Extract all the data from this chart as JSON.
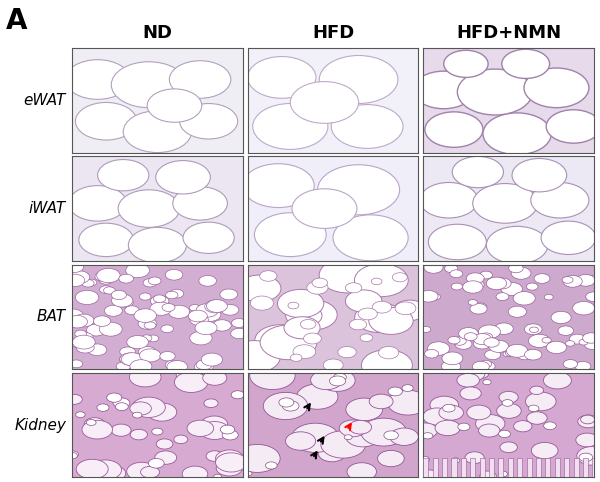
{
  "panel_label": "A",
  "col_headers": [
    "ND",
    "HFD",
    "HFD+NMN"
  ],
  "row_labels": [
    "eWAT",
    "iWAT",
    "BAT",
    "Kidney"
  ],
  "n_rows": 4,
  "n_cols": 3,
  "background_color": "#ffffff",
  "grid_color": "#555555",
  "label_fontsize": 11,
  "header_fontsize": 13,
  "panel_label_fontsize": 20,
  "fig_width": 6.0,
  "fig_height": 4.82
}
